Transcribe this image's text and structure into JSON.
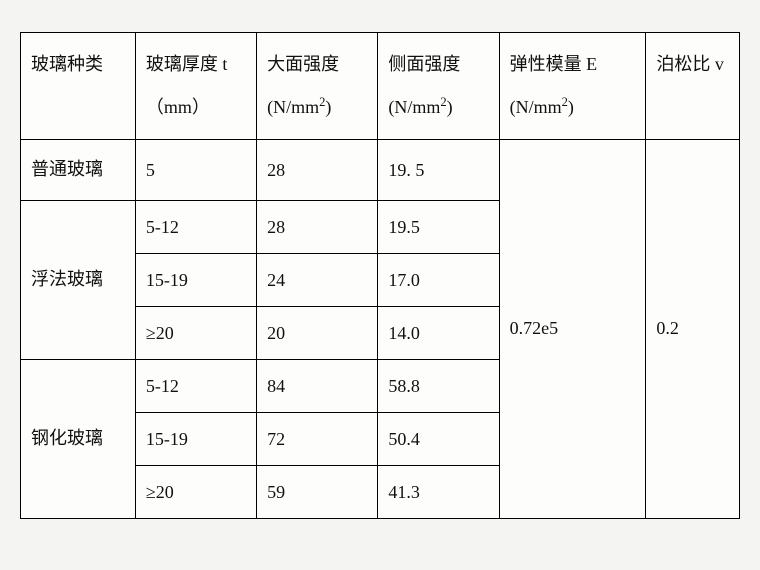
{
  "headers": {
    "glass_type": "玻璃种类",
    "thickness": "玻璃厚度 t （mm）",
    "large_strength_html": "大面强度 (N/mm<span class=\"sup\">2</span>)",
    "side_strength_html": "侧面强度 (N/mm<span class=\"sup\">2</span>)",
    "elastic_modulus_html": "弹性模量 E (N/mm<span class=\"sup\">2</span>)",
    "poisson": "泊松比 v"
  },
  "rows": [
    {
      "type": "普通玻璃",
      "type_rowspan": 1,
      "thickness": "5",
      "large": "28",
      "side": "19. 5"
    },
    {
      "type": "浮法玻璃",
      "type_rowspan": 3,
      "thickness": "5-12",
      "large": "28",
      "side": "19.5"
    },
    {
      "thickness": "15-19",
      "large": "24",
      "side": "17.0"
    },
    {
      "thickness": "≥20",
      "large": "20",
      "side": "14.0"
    },
    {
      "type": "钢化玻璃",
      "type_rowspan": 3,
      "thickness": "5-12",
      "large": "84",
      "side": "58.8"
    },
    {
      "thickness": "15-19",
      "large": "72",
      "side": "50.4"
    },
    {
      "thickness": "≥20",
      "large": "59",
      "side": "41.3"
    }
  ],
  "shared": {
    "elastic_modulus": "0.72e5",
    "poisson": "0.2",
    "rowspan": 7
  },
  "style": {
    "background": "#f4f4f2",
    "cell_bg": "#fdfdfc",
    "border_color": "#000000",
    "font_size": 18
  }
}
